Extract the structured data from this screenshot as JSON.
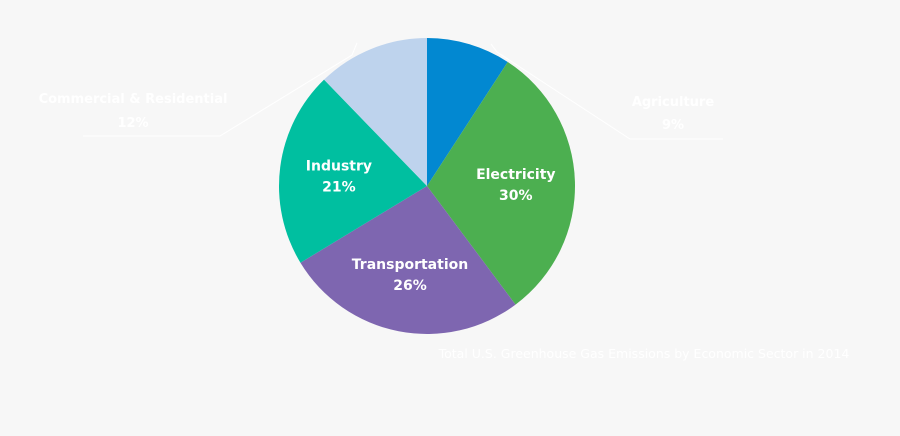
{
  "chart_data": {
    "type": "pie",
    "title": "Total U.S. Greenhouse Gas Emissions by Economic Sector in 2014",
    "slices": [
      {
        "label": "Agriculture",
        "value": 9,
        "value_label": "9%",
        "color": "#0288d1",
        "label_position": "outside-right"
      },
      {
        "label": "Electricity",
        "value": 30,
        "value_label": "30%",
        "color": "#4caf50",
        "label_position": "inside"
      },
      {
        "label": "Transportation",
        "value": 26,
        "value_label": "26%",
        "color": "#7e66b0",
        "label_position": "inside"
      },
      {
        "label": "Industry",
        "value": 21,
        "value_label": "21%",
        "color": "#00bfa0",
        "label_position": "inside"
      },
      {
        "label": "Commercial & Residential",
        "value": 12,
        "value_label": "12%",
        "color": "#bed3ed",
        "label_position": "outside-left"
      }
    ],
    "start_angle_deg": 0,
    "direction": "clockwise"
  },
  "colors": {
    "background": "#f7f7f7",
    "text": "#ffffff"
  }
}
